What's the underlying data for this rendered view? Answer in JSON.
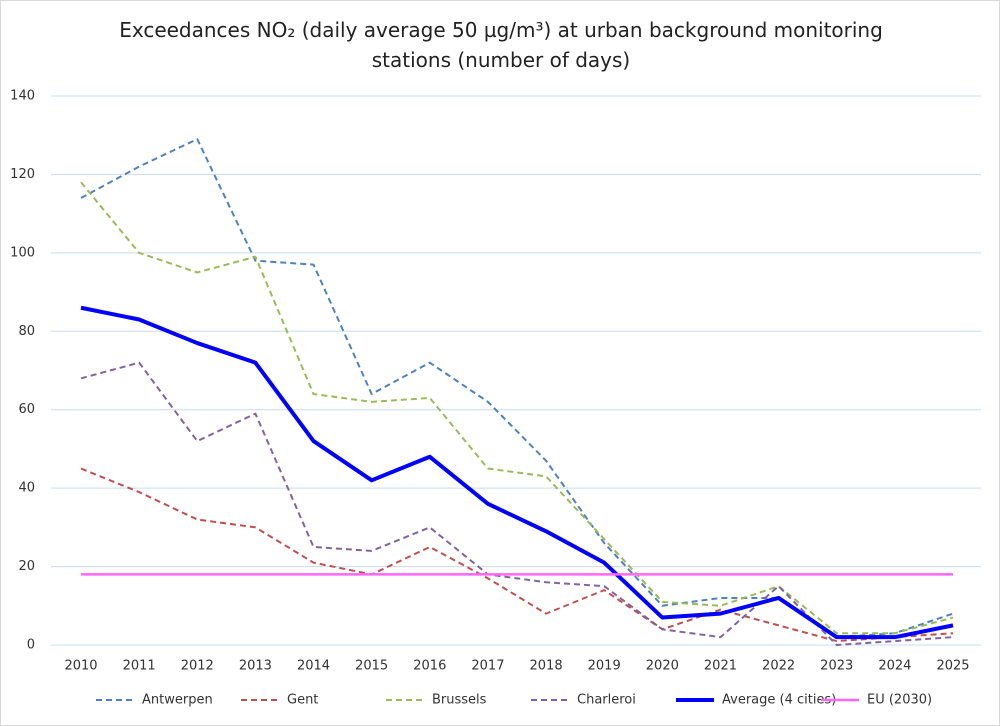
{
  "chart_data": {
    "type": "line",
    "title": "Exceedances NO₂ (daily average 50 µg/m³) at urban background monitoring stations (number of days)",
    "categories": [
      "2010",
      "2011",
      "2012",
      "2013",
      "2014",
      "2015",
      "2016",
      "2017",
      "2018",
      "2019",
      "2020",
      "2021",
      "2022",
      "2023",
      "2024",
      "2025"
    ],
    "ylim": [
      0,
      140
    ],
    "yticks": [
      0,
      20,
      40,
      60,
      80,
      100,
      120,
      140
    ],
    "grid": true,
    "legend": "bottom",
    "series": [
      {
        "name": "Antwerpen",
        "color": "#4f81bd",
        "dashed": true,
        "values": [
          114,
          122,
          129,
          98,
          97,
          64,
          72,
          62,
          47,
          26,
          10,
          12,
          12,
          2,
          3,
          8
        ]
      },
      {
        "name": "Gent",
        "color": "#c0504d",
        "dashed": true,
        "values": [
          45,
          39,
          32,
          30,
          21,
          18,
          25,
          17,
          8,
          14,
          4,
          9,
          5,
          1,
          2,
          3
        ]
      },
      {
        "name": "Brussels",
        "color": "#9bbb59",
        "dashed": true,
        "values": [
          118,
          100,
          95,
          99,
          64,
          62,
          63,
          45,
          43,
          27,
          11,
          10,
          15,
          3,
          3,
          7
        ]
      },
      {
        "name": "Charleroi",
        "color": "#8064a2",
        "dashed": true,
        "values": [
          68,
          72,
          52,
          59,
          25,
          24,
          30,
          18,
          16,
          15,
          4,
          2,
          15,
          0,
          1,
          2
        ]
      },
      {
        "name": "Average (4 cities)",
        "color": "#0000ff",
        "dashed": false,
        "width": 4,
        "values": [
          86,
          83,
          77,
          72,
          52,
          42,
          48,
          36,
          29,
          21,
          7,
          8,
          12,
          2,
          2,
          5
        ]
      },
      {
        "name": "EU (2030)",
        "color": "#ff66ff",
        "dashed": false,
        "width": 2.5,
        "values": [
          18,
          18,
          18,
          18,
          18,
          18,
          18,
          18,
          18,
          18,
          18,
          18,
          18,
          18,
          18,
          18
        ]
      }
    ]
  }
}
